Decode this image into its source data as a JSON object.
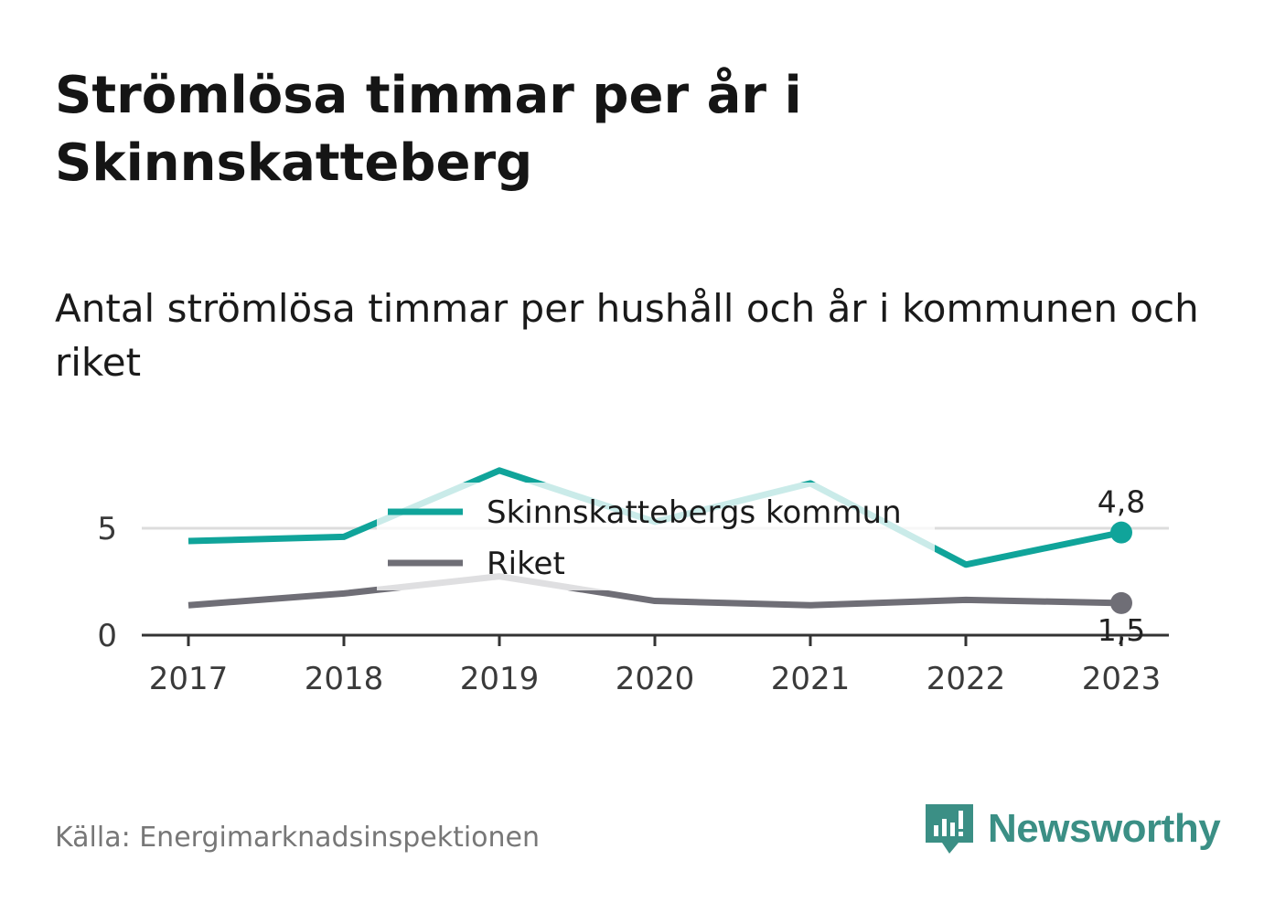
{
  "title": "Strömlösa timmar per år i Skinnskatteberg",
  "subtitle": "Antal strömlösa timmar per hushåll och år i kommunen och riket",
  "source": "Källa: Energimarknadsinspektionen",
  "brand": {
    "name": "Newsworthy",
    "icon": "newsworthy-chart-bubble-icon",
    "color": "#3b8f85"
  },
  "chart_data": {
    "type": "line",
    "x": [
      "2017",
      "2018",
      "2019",
      "2020",
      "2021",
      "2022",
      "2023"
    ],
    "ylim": [
      0,
      8
    ],
    "yticks": [
      0,
      5
    ],
    "ytick_labels": [
      "0",
      "5"
    ],
    "grid": true,
    "legend_position": "top-center",
    "series": [
      {
        "name": "Skinnskattebergs kommun",
        "color": "#10a49a",
        "values": [
          4.4,
          4.6,
          7.7,
          5.3,
          7.1,
          3.3,
          4.8
        ],
        "end_label": "4,8"
      },
      {
        "name": "Riket",
        "color": "#6f6e76",
        "values": [
          1.4,
          1.95,
          2.75,
          1.6,
          1.4,
          1.65,
          1.5
        ],
        "end_label": "1,5"
      }
    ]
  }
}
